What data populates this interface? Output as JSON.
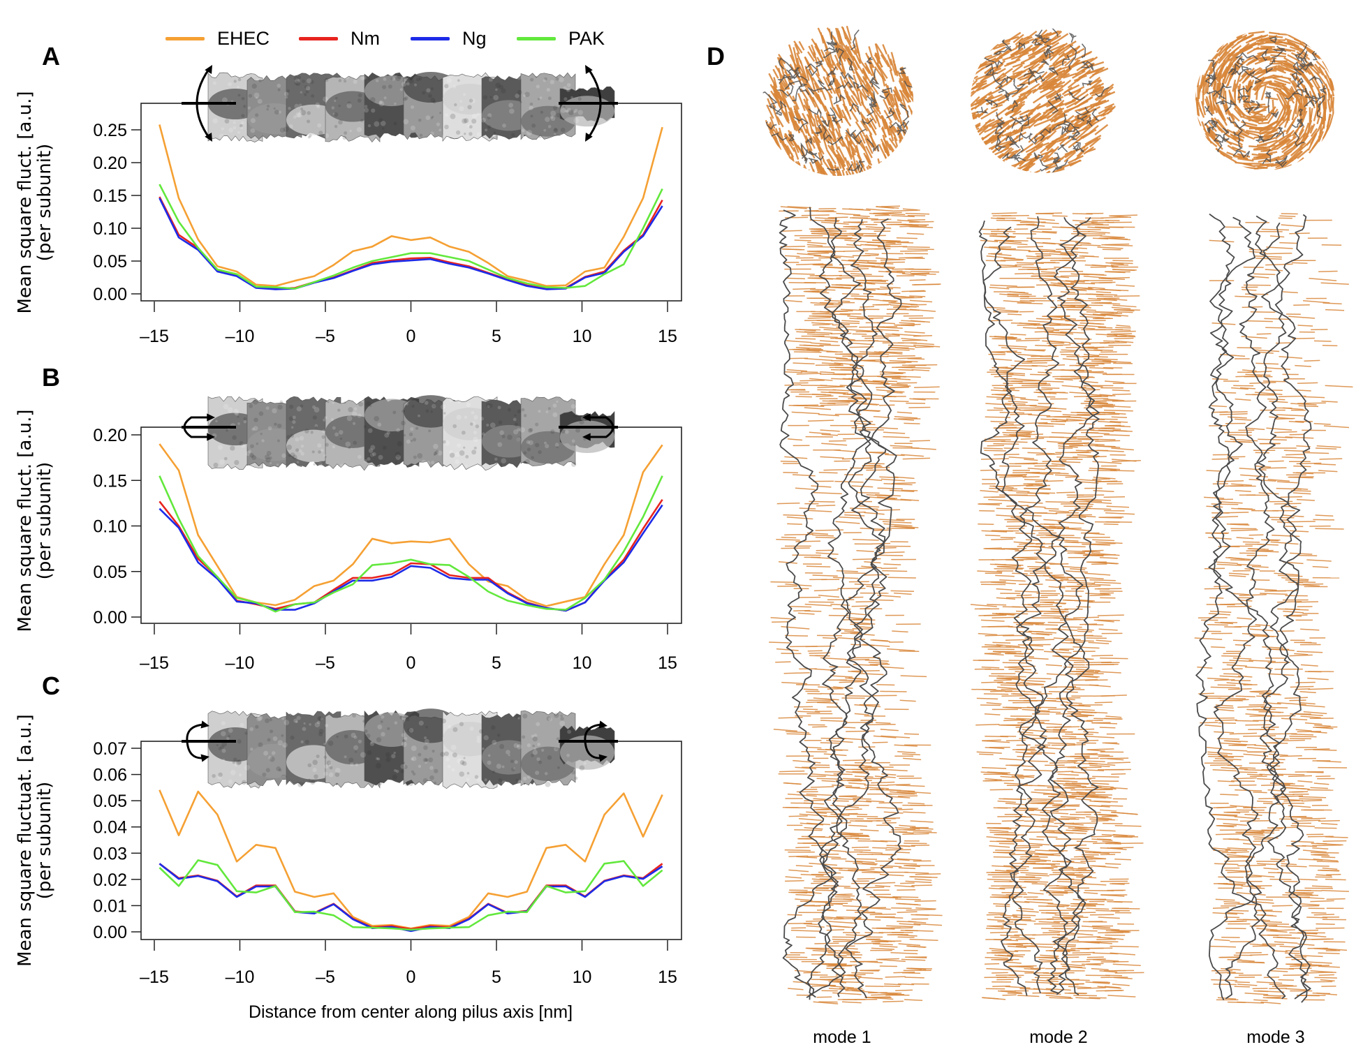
{
  "legend": [
    {
      "label": "EHEC",
      "color": "#F5A033"
    },
    {
      "label": "Nm",
      "color": "#E8231E"
    },
    {
      "label": "Ng",
      "color": "#1D2BE8"
    },
    {
      "label": "PAK",
      "color": "#62E83C"
    }
  ],
  "chart_data": [
    {
      "panel": "A",
      "type": "line",
      "ylabel": [
        "Mean square fluct. [a.u.]",
        "(per subunit)"
      ],
      "xlabel": "",
      "xlim": [
        -15,
        15
      ],
      "ylim": [
        0,
        0.25
      ],
      "xticks": [
        "-15",
        "-10",
        "-5",
        "0",
        "5",
        "10",
        "15"
      ],
      "yticks": [
        "0.00",
        "0.05",
        "0.10",
        "0.15",
        "0.20",
        "0.25"
      ],
      "x": [
        -14.7,
        -13.57,
        -12.44,
        -11.31,
        -10.18,
        -9.05,
        -7.92,
        -6.78,
        -5.65,
        -4.52,
        -3.39,
        -2.26,
        -1.13,
        0,
        1.13,
        2.26,
        3.39,
        4.52,
        5.65,
        6.78,
        7.92,
        9.05,
        10.18,
        11.31,
        12.44,
        13.57,
        14.7
      ],
      "series": [
        {
          "name": "EHEC",
          "values": [
            0.258,
            0.146,
            0.083,
            0.042,
            0.034,
            0.014,
            0.012,
            0.02,
            0.027,
            0.044,
            0.065,
            0.072,
            0.088,
            0.082,
            0.086,
            0.072,
            0.064,
            0.047,
            0.027,
            0.02,
            0.012,
            0.013,
            0.034,
            0.04,
            0.087,
            0.146,
            0.254
          ]
        },
        {
          "name": "Nm",
          "values": [
            0.148,
            0.09,
            0.07,
            0.035,
            0.028,
            0.01,
            0.008,
            0.009,
            0.018,
            0.025,
            0.036,
            0.047,
            0.051,
            0.054,
            0.055,
            0.048,
            0.042,
            0.032,
            0.022,
            0.013,
            0.008,
            0.009,
            0.026,
            0.034,
            0.066,
            0.09,
            0.143
          ]
        },
        {
          "name": "Ng",
          "values": [
            0.146,
            0.086,
            0.067,
            0.034,
            0.027,
            0.009,
            0.007,
            0.008,
            0.017,
            0.024,
            0.035,
            0.045,
            0.049,
            0.051,
            0.053,
            0.046,
            0.04,
            0.031,
            0.021,
            0.012,
            0.007,
            0.008,
            0.025,
            0.032,
            0.064,
            0.088,
            0.134
          ]
        },
        {
          "name": "PAK",
          "values": [
            0.167,
            0.11,
            0.07,
            0.037,
            0.03,
            0.011,
            0.01,
            0.008,
            0.018,
            0.028,
            0.04,
            0.05,
            0.056,
            0.062,
            0.062,
            0.056,
            0.05,
            0.037,
            0.024,
            0.016,
            0.01,
            0.009,
            0.012,
            0.03,
            0.045,
            0.1,
            0.16
          ]
        }
      ]
    },
    {
      "panel": "B",
      "type": "line",
      "ylabel": [
        "Mean square fluct. [a.u.]",
        "(per subunit)"
      ],
      "xlabel": "",
      "xlim": [
        -15,
        15
      ],
      "ylim": [
        0,
        0.2
      ],
      "xticks": [
        "-15",
        "-10",
        "-5",
        "0",
        "5",
        "10",
        "15"
      ],
      "yticks": [
        "0.00",
        "0.05",
        "0.10",
        "0.15",
        "0.20"
      ],
      "x": [
        -14.7,
        -13.57,
        -12.44,
        -11.31,
        -10.18,
        -9.05,
        -7.92,
        -6.78,
        -5.65,
        -4.52,
        -3.39,
        -2.26,
        -1.13,
        0,
        1.13,
        2.26,
        3.39,
        4.52,
        5.65,
        6.78,
        7.92,
        9.05,
        10.18,
        11.31,
        12.44,
        13.57,
        14.7
      ],
      "series": [
        {
          "name": "EHEC",
          "values": [
            0.19,
            0.161,
            0.09,
            0.056,
            0.022,
            0.016,
            0.013,
            0.019,
            0.034,
            0.04,
            0.058,
            0.086,
            0.081,
            0.083,
            0.082,
            0.086,
            0.058,
            0.039,
            0.034,
            0.019,
            0.012,
            0.017,
            0.022,
            0.058,
            0.09,
            0.159,
            0.189
          ]
        },
        {
          "name": "Nm",
          "values": [
            0.127,
            0.1,
            0.064,
            0.044,
            0.018,
            0.014,
            0.009,
            0.014,
            0.016,
            0.03,
            0.043,
            0.043,
            0.047,
            0.059,
            0.058,
            0.046,
            0.043,
            0.043,
            0.027,
            0.016,
            0.01,
            0.007,
            0.016,
            0.041,
            0.063,
            0.097,
            0.129
          ]
        },
        {
          "name": "Ng",
          "values": [
            0.119,
            0.098,
            0.06,
            0.042,
            0.017,
            0.015,
            0.008,
            0.008,
            0.015,
            0.028,
            0.04,
            0.04,
            0.044,
            0.056,
            0.054,
            0.043,
            0.041,
            0.041,
            0.026,
            0.015,
            0.01,
            0.007,
            0.016,
            0.04,
            0.06,
            0.092,
            0.123
          ]
        },
        {
          "name": "PAK",
          "values": [
            0.155,
            0.108,
            0.067,
            0.044,
            0.021,
            0.016,
            0.006,
            0.014,
            0.016,
            0.027,
            0.036,
            0.057,
            0.059,
            0.063,
            0.058,
            0.057,
            0.044,
            0.028,
            0.018,
            0.013,
            0.009,
            0.008,
            0.021,
            0.041,
            0.072,
            0.11,
            0.155
          ]
        }
      ]
    },
    {
      "panel": "C",
      "type": "line",
      "ylabel": [
        "Mean square fluctuat. [a.u.]",
        "(per subunit)"
      ],
      "xlabel": "Distance from center along pilus axis [nm]",
      "xlim": [
        -15,
        15
      ],
      "ylim": [
        0,
        0.07
      ],
      "xticks": [
        "-15",
        "-10",
        "-5",
        "0",
        "5",
        "10",
        "15"
      ],
      "yticks": [
        "0.00",
        "0.01",
        "0.02",
        "0.03",
        "0.04",
        "0.05",
        "0.06",
        "0.07"
      ],
      "x": [
        -14.7,
        -13.57,
        -12.44,
        -11.31,
        -10.18,
        -9.05,
        -7.92,
        -6.78,
        -5.65,
        -4.52,
        -3.39,
        -2.26,
        -1.13,
        0,
        1.13,
        2.26,
        3.39,
        4.52,
        5.65,
        6.78,
        7.92,
        9.05,
        10.18,
        11.31,
        12.44,
        13.57,
        14.7
      ],
      "series": [
        {
          "name": "EHEC",
          "values": [
            0.0541,
            0.0368,
            0.0535,
            0.0447,
            0.0268,
            0.0332,
            0.032,
            0.0153,
            0.0133,
            0.0147,
            0.0057,
            0.0023,
            0.0026,
            0.0013,
            0.0026,
            0.0023,
            0.0057,
            0.0147,
            0.0133,
            0.0153,
            0.032,
            0.0332,
            0.0268,
            0.0447,
            0.0528,
            0.0363,
            0.0523
          ]
        },
        {
          "name": "Nm",
          "values": [
            0.026,
            0.0205,
            0.0215,
            0.0195,
            0.0135,
            0.0177,
            0.0177,
            0.0078,
            0.0072,
            0.0107,
            0.005,
            0.0017,
            0.0022,
            0.001,
            0.0022,
            0.0017,
            0.005,
            0.0107,
            0.0072,
            0.008,
            0.0177,
            0.0177,
            0.0135,
            0.0195,
            0.0215,
            0.0205,
            0.026
          ]
        },
        {
          "name": "Ng",
          "values": [
            0.026,
            0.0202,
            0.0213,
            0.0193,
            0.0133,
            0.0173,
            0.0173,
            0.0076,
            0.007,
            0.0105,
            0.0048,
            0.0014,
            0.0018,
            0.0003,
            0.0018,
            0.0014,
            0.0048,
            0.0105,
            0.007,
            0.0078,
            0.0173,
            0.0173,
            0.0133,
            0.0193,
            0.0213,
            0.0202,
            0.025
          ]
        },
        {
          "name": "PAK",
          "values": [
            0.0245,
            0.0175,
            0.0273,
            0.0255,
            0.0155,
            0.015,
            0.0175,
            0.0075,
            0.0077,
            0.0063,
            0.0018,
            0.0016,
            0.0013,
            0.0008,
            0.0013,
            0.0016,
            0.0018,
            0.0063,
            0.0077,
            0.0075,
            0.0175,
            0.015,
            0.0155,
            0.026,
            0.027,
            0.0175,
            0.0235
          ]
        }
      ]
    }
  ],
  "panel_labels": {
    "a": "A",
    "b": "B",
    "c": "C",
    "d": "D"
  },
  "panel_d": {
    "modes": [
      "mode 1",
      "mode 2",
      "mode 3"
    ],
    "backbone_color": "#4a4a4a",
    "vector_color": "#D9873A"
  }
}
